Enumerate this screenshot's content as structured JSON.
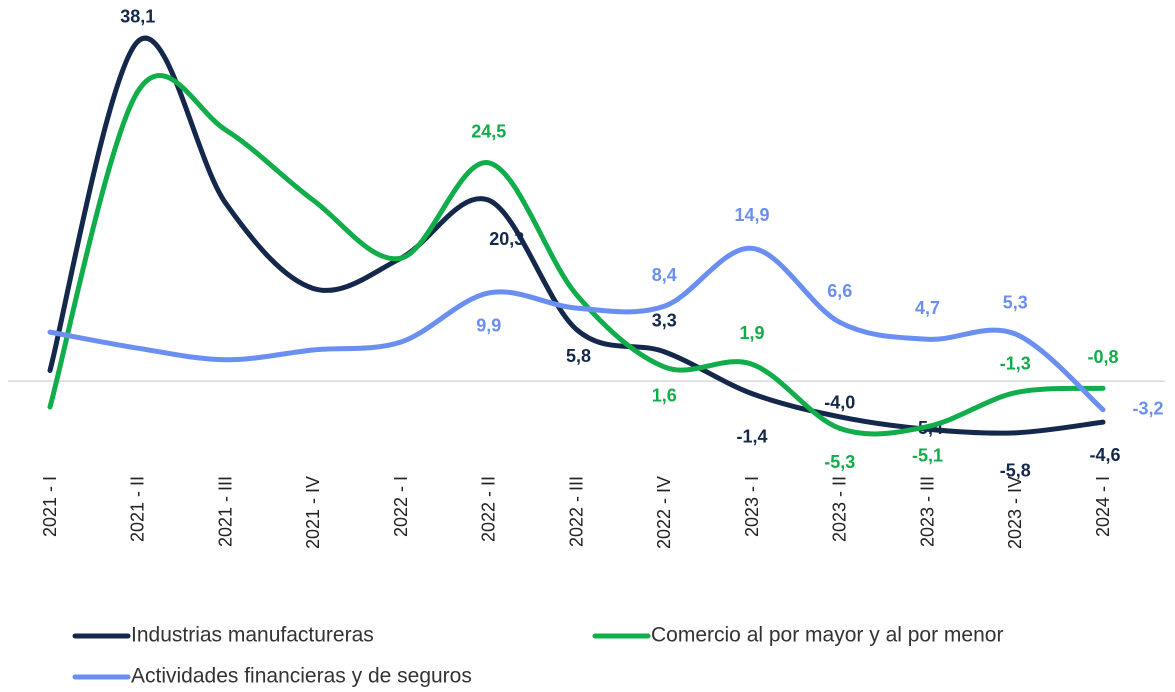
{
  "chart_data": {
    "type": "line",
    "categories": [
      "2021 - I",
      "2021 - II",
      "2021 - III",
      "2021 - IV",
      "2022 - I",
      "2022 - II",
      "2022 - III",
      "2022 - IV",
      "2023 - I",
      "2023 - II",
      "2023 - III",
      "2023 - IV",
      "2024 - I"
    ],
    "ylim": [
      -7.5,
      40.3
    ],
    "series": [
      {
        "name": "Industrias manufactureras",
        "color": "#14284b",
        "values": [
          1.2,
          38.1,
          20.0,
          10.4,
          13.8,
          20.3,
          5.8,
          3.3,
          -1.4,
          -4.0,
          -5.4,
          -5.8,
          -4.6
        ],
        "value_labels": [
          null,
          "38,1",
          null,
          null,
          null,
          "20,3",
          "5,8",
          "3,3",
          "-1,4",
          "-4,0",
          "-5,4",
          "-5,8",
          "-4,6"
        ]
      },
      {
        "name": "Comercio al por mayor y al por menor",
        "color": "#11ad4b",
        "values": [
          -2.9,
          32.5,
          28.2,
          20.3,
          13.8,
          24.5,
          9.7,
          1.6,
          1.9,
          -5.3,
          -5.1,
          -1.3,
          -0.8
        ],
        "value_labels": [
          null,
          null,
          null,
          null,
          null,
          "24,5",
          null,
          "1,6",
          "1,9",
          "-5,3",
          "-5,1",
          "-1,3",
          "-0,8"
        ]
      },
      {
        "name": "Actividades financieras y de seguros",
        "color": "#6b8ff0",
        "values": [
          5.5,
          3.7,
          2.4,
          3.5,
          4.4,
          9.9,
          8.2,
          8.4,
          14.9,
          6.6,
          4.7,
          5.3,
          -3.2
        ],
        "value_labels": [
          null,
          null,
          null,
          null,
          null,
          "9,9",
          null,
          "8,4",
          "14,9",
          "6,6",
          "4,7",
          "5,3",
          "-3,2"
        ]
      }
    ]
  }
}
